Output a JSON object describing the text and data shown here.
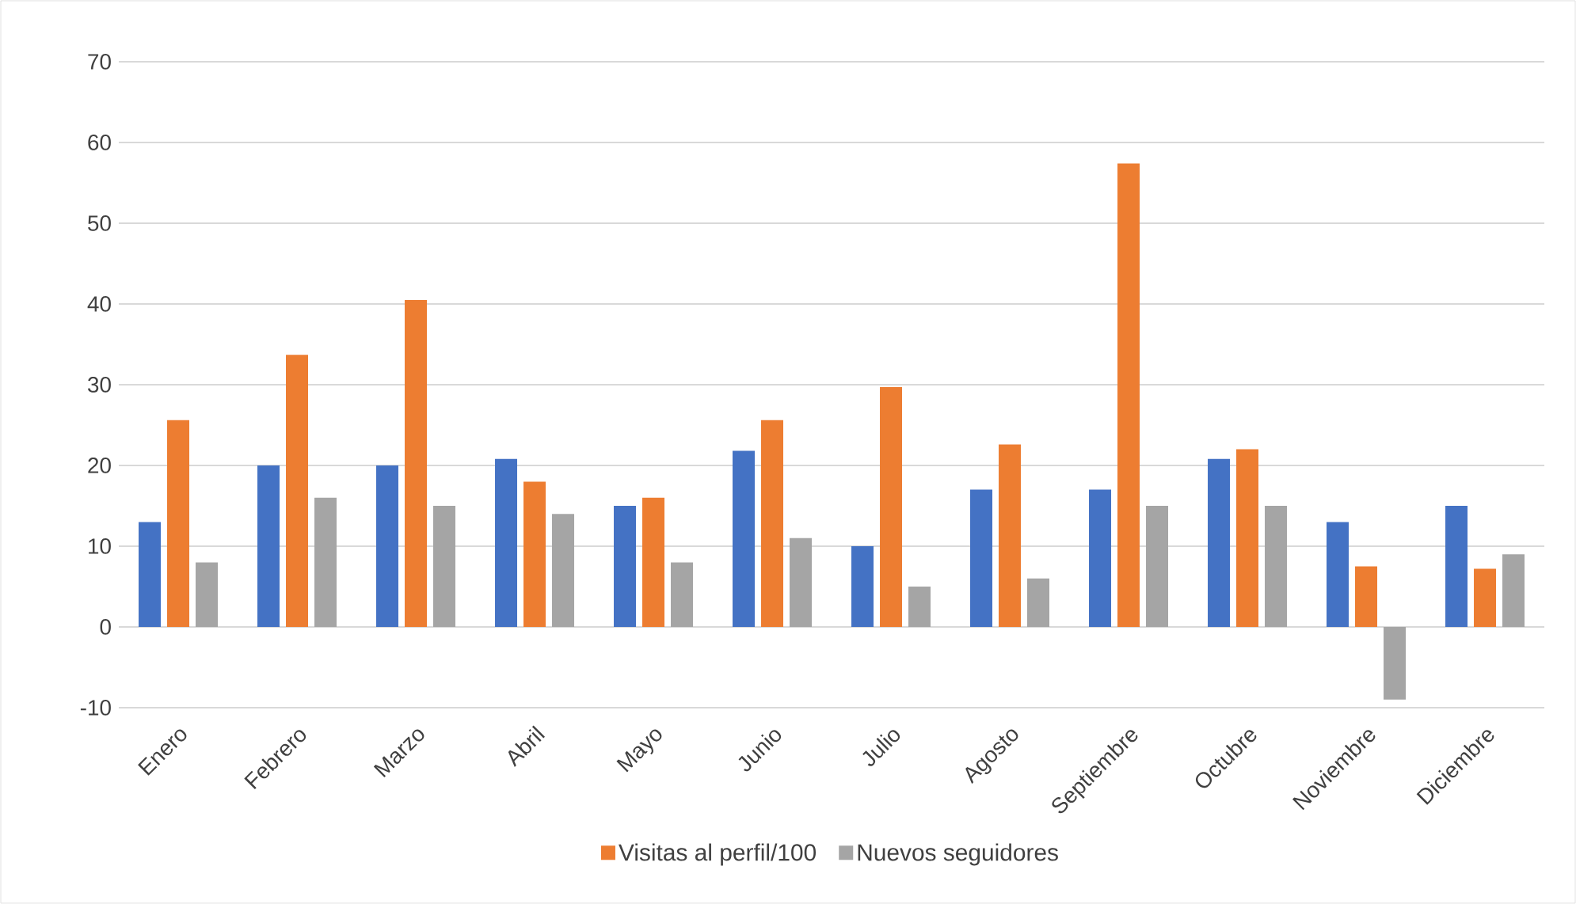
{
  "chart_data": {
    "type": "bar",
    "categories": [
      "Enero",
      "Febrero",
      "Marzo",
      "Abril",
      "Mayo",
      "Junio",
      "Julio",
      "Agosto",
      "Septiembre",
      "Octubre",
      "Noviembre",
      "Diciembre"
    ],
    "series": [
      {
        "color": "#4472c4",
        "values": [
          13,
          20,
          20,
          20.8,
          15,
          21.8,
          10,
          17,
          17,
          20.8,
          13,
          15
        ]
      },
      {
        "name": "Visitas al perfil/100",
        "color": "#ed7d31",
        "values": [
          25.6,
          33.7,
          40.5,
          18,
          16,
          25.6,
          29.7,
          22.6,
          57.4,
          22,
          7.5,
          7.2
        ]
      },
      {
        "name": "Nuevos seguidores",
        "color": "#a5a5a5",
        "values": [
          8,
          16,
          15,
          14,
          8,
          11,
          5,
          6,
          15,
          15,
          -9,
          9
        ]
      }
    ],
    "ylim": [
      -10,
      70
    ],
    "yticks": [
      -10,
      0,
      10,
      20,
      30,
      40,
      50,
      60,
      70
    ],
    "grid": "y",
    "legend": "bottom"
  }
}
